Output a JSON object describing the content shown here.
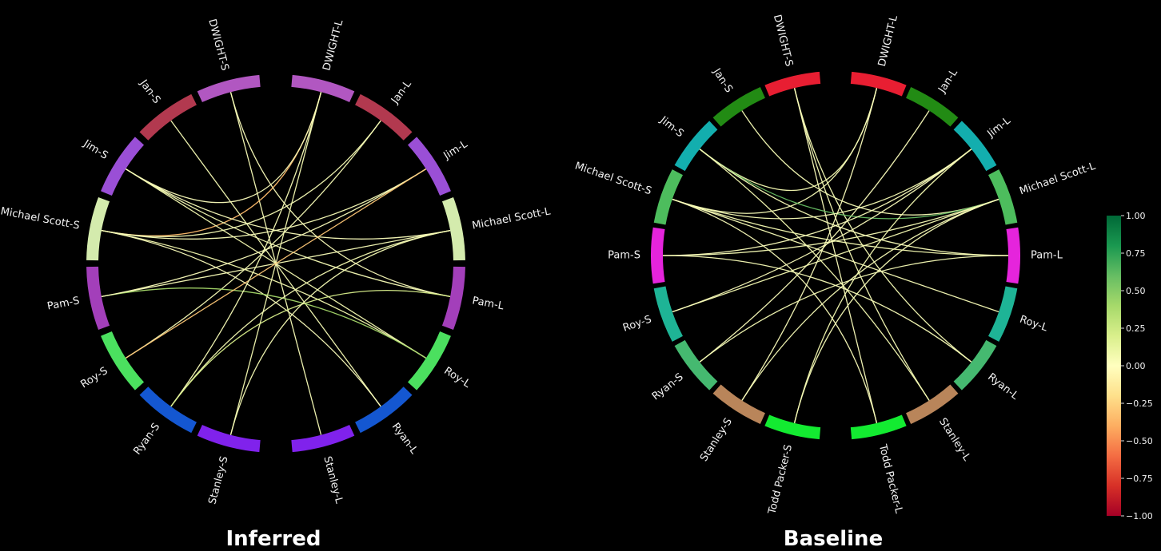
{
  "colormap": {
    "stops": [
      "#a50026",
      "#d73027",
      "#f46d43",
      "#fdae61",
      "#fee08b",
      "#ffffbf",
      "#d9ef8b",
      "#a6d96a",
      "#66bd63",
      "#1a9850",
      "#006837"
    ],
    "ticks": [
      "1.00",
      "0.75",
      "0.50",
      "0.25",
      "0.00",
      "−0.25",
      "−0.50",
      "−0.75",
      "−1.00"
    ],
    "range": [
      -1,
      1
    ]
  },
  "chart_data": [
    {
      "type": "chord",
      "title": "Inferred",
      "nodes": [
        {
          "name": "DWIGHT-L",
          "color": "#b157c1"
        },
        {
          "name": "Jan-L",
          "color": "#b2394f"
        },
        {
          "name": "Jim-L",
          "color": "#9a4fd6"
        },
        {
          "name": "Michael Scott-L",
          "color": "#d4ebad"
        },
        {
          "name": "Pam-L",
          "color": "#a33fba"
        },
        {
          "name": "Roy-L",
          "color": "#4be05f"
        },
        {
          "name": "Ryan-L",
          "color": "#1457d1"
        },
        {
          "name": "Stanley-L",
          "color": "#8022ec"
        },
        {
          "name": "Stanley-S",
          "color": "#8022ec"
        },
        {
          "name": "Ryan-S",
          "color": "#1457d1"
        },
        {
          "name": "Roy-S",
          "color": "#4be05f"
        },
        {
          "name": "Pam-S",
          "color": "#a33fba"
        },
        {
          "name": "Michael Scott-S",
          "color": "#d4ebad"
        },
        {
          "name": "Jim-S",
          "color": "#9a4fd6"
        },
        {
          "name": "Jan-S",
          "color": "#b2394f"
        },
        {
          "name": "DWIGHT-S",
          "color": "#b157c1"
        }
      ],
      "links": [
        {
          "source": "DWIGHT-S",
          "target": "Pam-L",
          "value": 0.02
        },
        {
          "source": "DWIGHT-S",
          "target": "Stanley-L",
          "value": 0.03
        },
        {
          "source": "DWIGHT-L",
          "target": "Michael Scott-S",
          "value": -0.35
        },
        {
          "source": "DWIGHT-L",
          "target": "Stanley-S",
          "value": 0.05
        },
        {
          "source": "DWIGHT-L",
          "target": "Jim-S",
          "value": 0.02
        },
        {
          "source": "Jan-S",
          "target": "Ryan-L",
          "value": 0.04
        },
        {
          "source": "Jan-L",
          "target": "Roy-S",
          "value": 0.03
        },
        {
          "source": "Jim-S",
          "target": "Roy-L",
          "value": 0.05
        },
        {
          "source": "Jim-S",
          "target": "Michael Scott-L",
          "value": 0.02
        },
        {
          "source": "Jim-S",
          "target": "Pam-L",
          "value": 0.04
        },
        {
          "source": "Michael Scott-S",
          "target": "Jim-L",
          "value": 0.03
        },
        {
          "source": "Michael Scott-S",
          "target": "Roy-L",
          "value": 0.06
        },
        {
          "source": "Michael Scott-S",
          "target": "Ryan-L",
          "value": 0.02
        },
        {
          "source": "Michael Scott-S",
          "target": "Jan-L",
          "value": 0.04
        },
        {
          "source": "Pam-S",
          "target": "Michael Scott-L",
          "value": 0.03
        },
        {
          "source": "Pam-S",
          "target": "Roy-L",
          "value": 0.4
        },
        {
          "source": "Pam-S",
          "target": "Jim-L",
          "value": 0.02
        },
        {
          "source": "Roy-S",
          "target": "Jim-L",
          "value": -0.3
        },
        {
          "source": "Ryan-S",
          "target": "Michael Scott-L",
          "value": 0.05
        },
        {
          "source": "Ryan-S",
          "target": "DWIGHT-L",
          "value": 0.03
        },
        {
          "source": "Ryan-S",
          "target": "Pam-L",
          "value": 0.2
        },
        {
          "source": "Stanley-S",
          "target": "Michael Scott-L",
          "value": 0.04
        }
      ]
    },
    {
      "type": "chord",
      "title": "Baseline",
      "nodes": [
        {
          "name": "DWIGHT-L",
          "color": "#e81e32"
        },
        {
          "name": "Jan-L",
          "color": "#228b14"
        },
        {
          "name": "Jim-L",
          "color": "#13aeae"
        },
        {
          "name": "Michael Scott-L",
          "color": "#4dbd5d"
        },
        {
          "name": "Pam-L",
          "color": "#e524dc"
        },
        {
          "name": "Roy-L",
          "color": "#1eb496"
        },
        {
          "name": "Ryan-L",
          "color": "#45b970"
        },
        {
          "name": "Stanley-L",
          "color": "#b9855a"
        },
        {
          "name": "Todd Packer-L",
          "color": "#13eb31"
        },
        {
          "name": "Todd Packer-S",
          "color": "#13eb31"
        },
        {
          "name": "Stanley-S",
          "color": "#b9855a"
        },
        {
          "name": "Ryan-S",
          "color": "#45b970"
        },
        {
          "name": "Roy-S",
          "color": "#1eb496"
        },
        {
          "name": "Pam-S",
          "color": "#e524dc"
        },
        {
          "name": "Michael Scott-S",
          "color": "#4dbd5d"
        },
        {
          "name": "Jim-S",
          "color": "#13aeae"
        },
        {
          "name": "Jan-S",
          "color": "#228b14"
        },
        {
          "name": "DWIGHT-S",
          "color": "#e81e32"
        }
      ],
      "links": [
        {
          "source": "DWIGHT-S",
          "target": "Stanley-L",
          "value": 0.03
        },
        {
          "source": "DWIGHT-S",
          "target": "Ryan-L",
          "value": 0.04
        },
        {
          "source": "DWIGHT-S",
          "target": "Todd Packer-L",
          "value": 0.02
        },
        {
          "source": "DWIGHT-L",
          "target": "Jim-S",
          "value": 0.05
        },
        {
          "source": "DWIGHT-L",
          "target": "Michael Scott-S",
          "value": 0.03
        },
        {
          "source": "Jan-S",
          "target": "Michael Scott-L",
          "value": 0.04
        },
        {
          "source": "Jan-L",
          "target": "Ryan-S",
          "value": 0.02
        },
        {
          "source": "Jim-S",
          "target": "Michael Scott-L",
          "value": 0.6
        },
        {
          "source": "Jim-S",
          "target": "Pam-L",
          "value": 0.03
        },
        {
          "source": "Jim-S",
          "target": "Stanley-L",
          "value": 0.05
        },
        {
          "source": "Jim-L",
          "target": "Michael Scott-S",
          "value": 0.04
        },
        {
          "source": "Jim-L",
          "target": "Pam-S",
          "value": 0.02
        },
        {
          "source": "Michael Scott-S",
          "target": "Roy-L",
          "value": 0.03
        },
        {
          "source": "Michael Scott-S",
          "target": "Pam-L",
          "value": 0.05
        },
        {
          "source": "Michael Scott-S",
          "target": "Todd Packer-L",
          "value": 0.02
        },
        {
          "source": "Pam-S",
          "target": "Michael Scott-L",
          "value": 0.04
        },
        {
          "source": "Pam-S",
          "target": "Ryan-L",
          "value": 0.03
        },
        {
          "source": "Roy-S",
          "target": "Michael Scott-L",
          "value": 0.05
        },
        {
          "source": "Roy-S",
          "target": "Jim-L",
          "value": 0.02
        },
        {
          "source": "Ryan-S",
          "target": "Pam-L",
          "value": 0.04
        },
        {
          "source": "Stanley-S",
          "target": "Michael Scott-L",
          "value": 0.03
        },
        {
          "source": "Todd Packer-S",
          "target": "Jim-L",
          "value": 0.05
        },
        {
          "source": "Stanley-S",
          "target": "DWIGHT-L",
          "value": 0.02
        },
        {
          "source": "Todd Packer-S",
          "target": "Michael Scott-L",
          "value": 0.03
        }
      ]
    }
  ]
}
